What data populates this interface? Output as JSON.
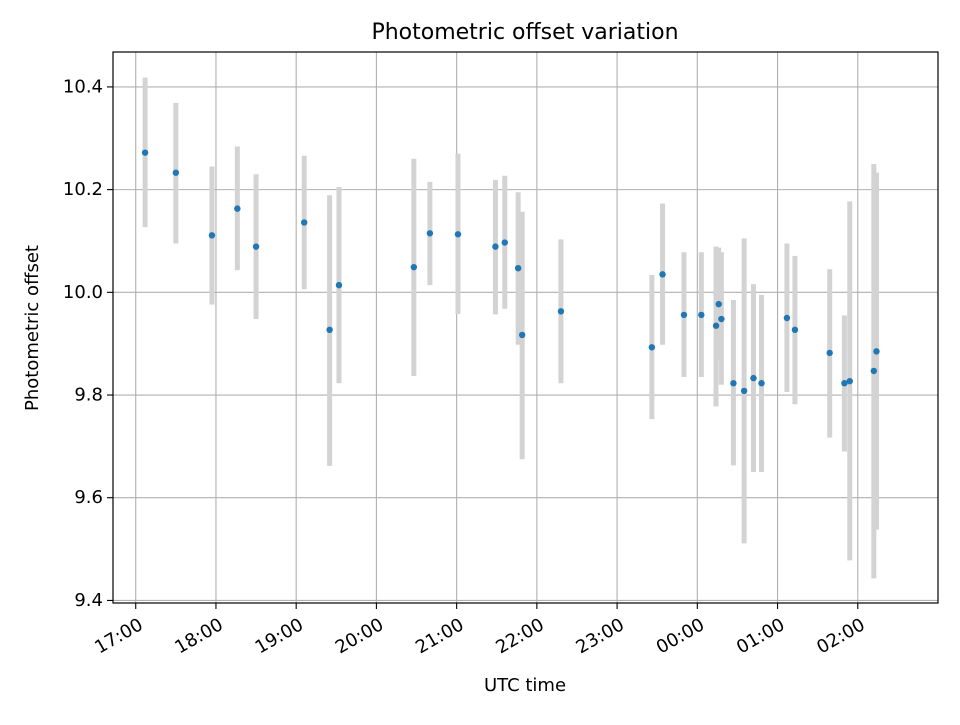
{
  "chart_data": {
    "type": "scatter",
    "title": "Photometric offset variation",
    "xlabel": "UTC time",
    "ylabel": "Photometric offset",
    "grid": true,
    "legend": "none",
    "x_axis": {
      "kind": "time",
      "range": [
        "16:43",
        "03:00"
      ],
      "tick_labels": [
        "17:00",
        "18:00",
        "19:00",
        "20:00",
        "21:00",
        "22:00",
        "23:00",
        "00:00",
        "01:00",
        "02:00"
      ],
      "tick_labels_rotated": true
    },
    "y_axis": {
      "range": [
        9.395,
        10.468
      ],
      "ticks": [
        9.4,
        9.6,
        9.8,
        10.0,
        10.2,
        10.4
      ],
      "tick_labels": [
        "9.4",
        "9.6",
        "9.8",
        "10.0",
        "10.2",
        "10.4"
      ]
    },
    "colors": {
      "point": "#1f77b4",
      "errorbar": "#d3d3d3",
      "grid": "#b0b0b0",
      "axes": "#000000"
    },
    "series": [
      {
        "points": [
          {
            "time": "17:07",
            "y": 10.272,
            "y_low": 10.127,
            "y_high": 10.418
          },
          {
            "time": "17:30",
            "y": 10.233,
            "y_low": 10.095,
            "y_high": 10.369
          },
          {
            "time": "17:57",
            "y": 10.111,
            "y_low": 9.976,
            "y_high": 10.245
          },
          {
            "time": "18:16",
            "y": 10.163,
            "y_low": 10.043,
            "y_high": 10.284
          },
          {
            "time": "18:30",
            "y": 10.089,
            "y_low": 9.948,
            "y_high": 10.23
          },
          {
            "time": "19:06",
            "y": 10.136,
            "y_low": 10.006,
            "y_high": 10.266
          },
          {
            "time": "19:25",
            "y": 9.927,
            "y_low": 9.662,
            "y_high": 10.189
          },
          {
            "time": "19:32",
            "y": 10.014,
            "y_low": 9.823,
            "y_high": 10.205
          },
          {
            "time": "20:28",
            "y": 10.049,
            "y_low": 9.837,
            "y_high": 10.26
          },
          {
            "time": "20:40",
            "y": 10.115,
            "y_low": 10.014,
            "y_high": 10.215
          },
          {
            "time": "21:01",
            "y": 10.113,
            "y_low": 9.958,
            "y_high": 10.27
          },
          {
            "time": "21:29",
            "y": 10.089,
            "y_low": 9.957,
            "y_high": 10.219
          },
          {
            "time": "21:36",
            "y": 10.097,
            "y_low": 9.968,
            "y_high": 10.227
          },
          {
            "time": "21:46",
            "y": 10.047,
            "y_low": 9.898,
            "y_high": 10.195
          },
          {
            "time": "21:49",
            "y": 9.917,
            "y_low": 9.675,
            "y_high": 10.157
          },
          {
            "time": "22:18",
            "y": 9.963,
            "y_low": 9.823,
            "y_high": 10.103
          },
          {
            "time": "23:26",
            "y": 9.893,
            "y_low": 9.753,
            "y_high": 10.034
          },
          {
            "time": "23:34",
            "y": 10.035,
            "y_low": 9.898,
            "y_high": 10.173
          },
          {
            "time": "23:50",
            "y": 9.956,
            "y_low": 9.835,
            "y_high": 10.078
          },
          {
            "time": "00:03",
            "y": 9.956,
            "y_low": 9.835,
            "y_high": 10.078
          },
          {
            "time": "00:14",
            "y": 9.935,
            "y_low": 9.778,
            "y_high": 10.089
          },
          {
            "time": "00:16",
            "y": 9.977,
            "y_low": 9.868,
            "y_high": 10.087
          },
          {
            "time": "00:18",
            "y": 9.948,
            "y_low": 9.82,
            "y_high": 10.078
          },
          {
            "time": "00:27",
            "y": 9.823,
            "y_low": 9.663,
            "y_high": 9.985
          },
          {
            "time": "00:35",
            "y": 9.808,
            "y_low": 9.511,
            "y_high": 10.105
          },
          {
            "time": "00:42",
            "y": 9.833,
            "y_low": 9.65,
            "y_high": 10.016
          },
          {
            "time": "00:48",
            "y": 9.823,
            "y_low": 9.65,
            "y_high": 9.995
          },
          {
            "time": "01:07",
            "y": 9.95,
            "y_low": 9.806,
            "y_high": 10.095
          },
          {
            "time": "01:13",
            "y": 9.927,
            "y_low": 9.782,
            "y_high": 10.071
          },
          {
            "time": "01:39",
            "y": 9.882,
            "y_low": 9.717,
            "y_high": 10.045
          },
          {
            "time": "01:50",
            "y": 9.823,
            "y_low": 9.69,
            "y_high": 9.955
          },
          {
            "time": "01:54",
            "y": 9.827,
            "y_low": 9.478,
            "y_high": 10.177
          },
          {
            "time": "02:12",
            "y": 9.847,
            "y_low": 9.443,
            "y_high": 10.25
          },
          {
            "time": "02:14",
            "y": 9.885,
            "y_low": 9.538,
            "y_high": 10.233
          }
        ]
      }
    ]
  }
}
